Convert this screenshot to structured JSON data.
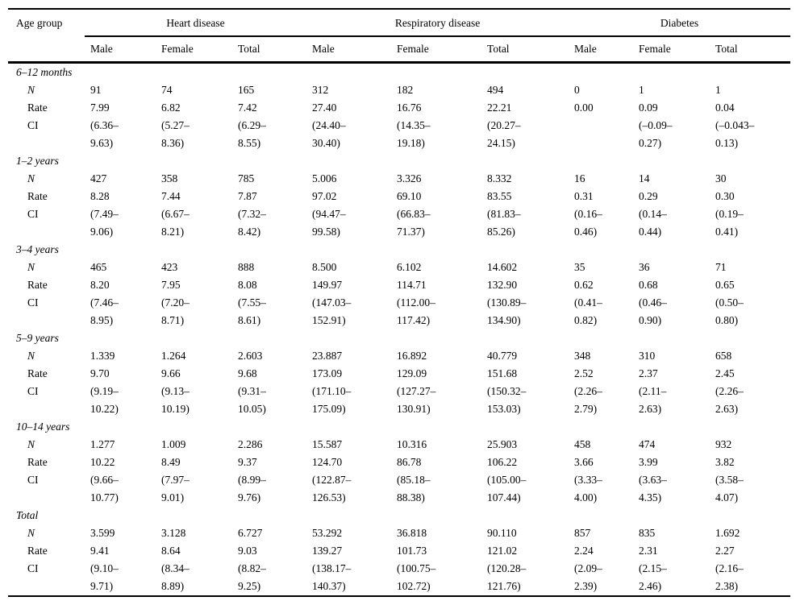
{
  "table": {
    "col1_header": "Age group",
    "disease_groups": [
      "Heart disease",
      "Respiratory disease",
      "Diabetes"
    ],
    "sub_headers": [
      "Male",
      "Female",
      "Total",
      "Male",
      "Female",
      "Total",
      "Male",
      "Female",
      "Total"
    ],
    "row_labels": {
      "n": "N",
      "rate": "Rate",
      "ci": "CI"
    },
    "age_groups": [
      {
        "label": "6–12 months",
        "n": [
          "91",
          "74",
          "165",
          "312",
          "182",
          "494",
          "0",
          "1",
          "1"
        ],
        "rate": [
          "7.99",
          "6.82",
          "7.42",
          "27.40",
          "16.76",
          "22.21",
          "0.00",
          "0.09",
          "0.04"
        ],
        "ci": [
          "(6.36–\n9.63)",
          "(5.27–\n8.36)",
          "(6.29–\n8.55)",
          "(24.40–\n30.40)",
          "(14.35–\n19.18)",
          "(20.27–\n24.15)",
          "",
          "(–0.09–\n0.27)",
          "(–0.043–\n0.13)"
        ]
      },
      {
        "label": "1–2 years",
        "n": [
          "427",
          "358",
          "785",
          "5.006",
          "3.326",
          "8.332",
          "16",
          "14",
          "30"
        ],
        "rate": [
          "8.28",
          "7.44",
          "7.87",
          "97.02",
          "69.10",
          "83.55",
          "0.31",
          "0.29",
          "0.30"
        ],
        "ci": [
          "(7.49–\n9.06)",
          "(6.67–\n8.21)",
          "(7.32–\n8.42)",
          "(94.47–\n99.58)",
          "(66.83–\n71.37)",
          "(81.83–\n85.26)",
          "(0.16–\n0.46)",
          "(0.14–\n0.44)",
          "(0.19–\n0.41)"
        ]
      },
      {
        "label": "3–4 years",
        "n": [
          "465",
          "423",
          "888",
          "8.500",
          "6.102",
          "14.602",
          "35",
          "36",
          "71"
        ],
        "rate": [
          "8.20",
          "7.95",
          "8.08",
          "149.97",
          "114.71",
          "132.90",
          "0.62",
          "0.68",
          "0.65"
        ],
        "ci": [
          "(7.46–\n8.95)",
          "(7.20–\n8.71)",
          "(7.55–\n8.61)",
          "(147.03–\n152.91)",
          "(112.00–\n117.42)",
          "(130.89–\n134.90)",
          "(0.41–\n0.82)",
          "(0.46–\n0.90)",
          "(0.50–\n0.80)"
        ]
      },
      {
        "label": "5–9 years",
        "n": [
          "1.339",
          "1.264",
          "2.603",
          "23.887",
          "16.892",
          "40.779",
          "348",
          "310",
          "658"
        ],
        "rate": [
          "9.70",
          "9.66",
          "9.68",
          "173.09",
          "129.09",
          "151.68",
          "2.52",
          "2.37",
          "2.45"
        ],
        "ci": [
          "(9.19–\n10.22)",
          "(9.13–\n10.19)",
          "(9.31–\n10.05)",
          "(171.10–\n175.09)",
          "(127.27–\n130.91)",
          "(150.32–\n153.03)",
          "(2.26–\n2.79)",
          "(2.11–\n2.63)",
          "(2.26–\n2.63)"
        ]
      },
      {
        "label": "10–14 years",
        "n": [
          "1.277",
          "1.009",
          "2.286",
          "15.587",
          "10.316",
          "25.903",
          "458",
          "474",
          "932"
        ],
        "rate": [
          "10.22",
          "8.49",
          "9.37",
          "124.70",
          "86.78",
          "106.22",
          "3.66",
          "3.99",
          "3.82"
        ],
        "ci": [
          "(9.66–\n10.77)",
          "(7.97–\n9.01)",
          "(8.99–\n9.76)",
          "(122.87–\n126.53)",
          "(85.18–\n88.38)",
          "(105.00–\n107.44)",
          "(3.33–\n4.00)",
          "(3.63–\n4.35)",
          "(3.58–\n4.07)"
        ]
      },
      {
        "label": "Total",
        "n": [
          "3.599",
          "3.128",
          "6.727",
          "53.292",
          "36.818",
          "90.110",
          "857",
          "835",
          "1.692"
        ],
        "rate": [
          "9.41",
          "8.64",
          "9.03",
          "139.27",
          "101.73",
          "121.02",
          "2.24",
          "2.31",
          "2.27"
        ],
        "ci": [
          "(9.10–\n9.71)",
          "(8.34–\n8.89)",
          "(8.82–\n9.25)",
          "(138.17–\n140.37)",
          "(100.75–\n102.72)",
          "(120.28–\n121.76)",
          "(2.09–\n2.39)",
          "(2.15–\n2.46)",
          "(2.16–\n2.38)"
        ]
      }
    ]
  }
}
